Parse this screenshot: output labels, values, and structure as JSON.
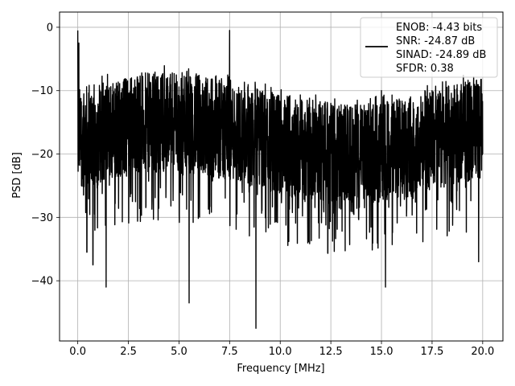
{
  "chart_data": {
    "type": "line",
    "title": "",
    "xlabel": "Frequency [MHz]",
    "ylabel": "PSD [dB]",
    "xlim": [
      -0.9,
      21.0
    ],
    "ylim": [
      -49.5,
      2.4
    ],
    "xticks": [
      0.0,
      2.5,
      5.0,
      7.5,
      10.0,
      12.5,
      15.0,
      17.5,
      20.0
    ],
    "xtick_labels": [
      "0.0",
      "2.5",
      "5.0",
      "7.5",
      "10.0",
      "12.5",
      "15.0",
      "17.5",
      "20.0"
    ],
    "yticks": [
      0,
      -10,
      -20,
      -30,
      -40
    ],
    "ytick_labels": [
      "0",
      "−10",
      "−20",
      "−30",
      "−40"
    ],
    "grid": true,
    "legend_position": "upper-right",
    "legend_entries": [
      "ENOB: -4.43 bits",
      "SNR: -24.87 dB",
      "SINAD: -24.89 dB",
      "SFDR: 0.38"
    ],
    "series": [
      {
        "color": "#000000",
        "description": "dense noise spectrum, baseline roughly -15 to -25 dB",
        "x": [
          0.0,
          0.05,
          0.3,
          0.45,
          0.75,
          1.4,
          2.5,
          5.5,
          7.5,
          8.8,
          10.0,
          12.5,
          15.0,
          15.2,
          17.5,
          19.8,
          20.0
        ],
        "y": [
          -0.5,
          -2.5,
          -10.5,
          -35.5,
          -37.5,
          -41.0,
          -14.0,
          -43.5,
          -0.5,
          -47.5,
          -12.0,
          -12.0,
          -10.0,
          -41.0,
          -10.0,
          -37.0,
          -20.0
        ]
      }
    ]
  }
}
